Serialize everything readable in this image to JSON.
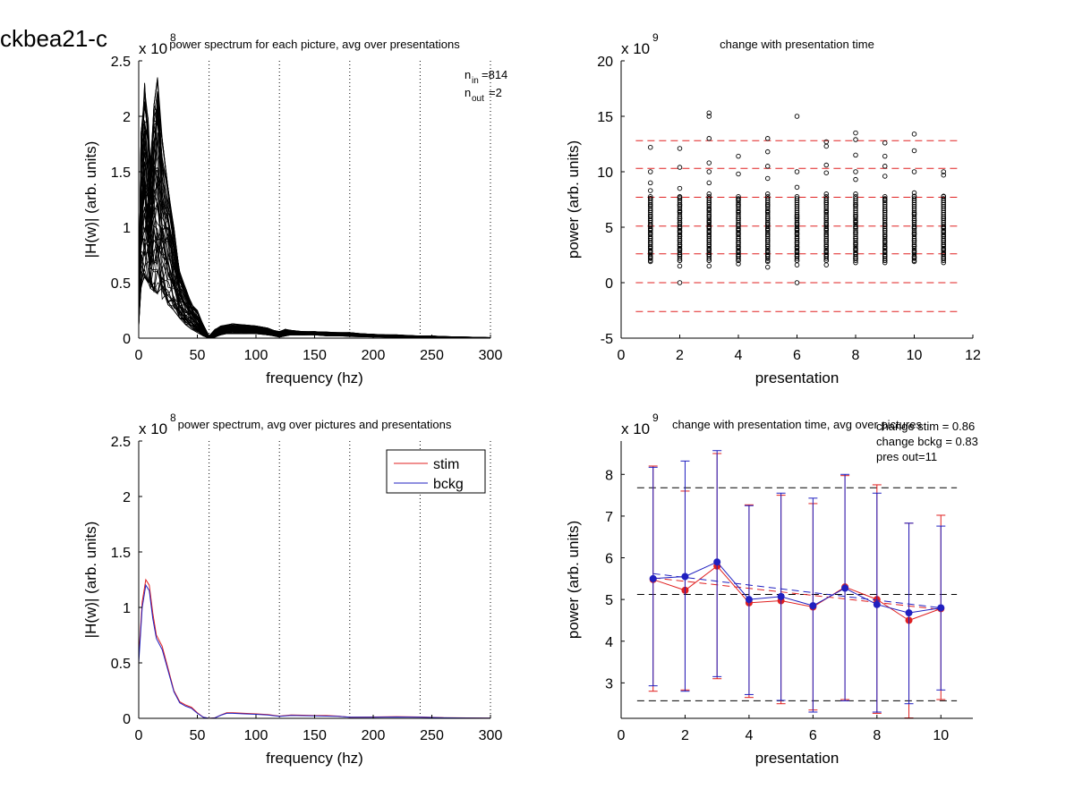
{
  "figure_title": "ckbea21-c",
  "chart_data": [
    {
      "type": "line",
      "title": "power spectrum for each picture, avg over presentations",
      "xlabel": "frequency (hz)",
      "ylabel": "|H(w)| (arb. units)",
      "y_exponent": "x 10",
      "y_exponent_power": "8",
      "xlim": [
        0,
        300
      ],
      "ylim": [
        0,
        2.5
      ],
      "x_ticks": [
        0,
        50,
        100,
        150,
        200,
        250,
        300
      ],
      "x_tick_labels": [
        "0",
        "50",
        "100",
        "150",
        "200",
        "250",
        "300"
      ],
      "y_ticks": [
        0,
        0.5,
        1,
        1.5,
        2,
        2.5
      ],
      "y_tick_labels": [
        "0",
        "0.5",
        "1",
        "1.5",
        "2",
        "2.5"
      ],
      "vlines": [
        60,
        120,
        180,
        240,
        300
      ],
      "annotation_n_in": "=814",
      "annotation_n_out": "=2",
      "annotation_n_in_sub": "in",
      "annotation_n_out_sub": "out",
      "frequencies": [
        0,
        2,
        5,
        8,
        10,
        13,
        16,
        20,
        25,
        30,
        35,
        40,
        45,
        50,
        55,
        60,
        65,
        70,
        75,
        80,
        90,
        100,
        110,
        115,
        120,
        125,
        130,
        140,
        150,
        160,
        170,
        180,
        190,
        200,
        210,
        220,
        230,
        240,
        250,
        260,
        270,
        280,
        290,
        300
      ],
      "envelope_upper": [
        0.3,
        1.85,
        2.3,
        2.0,
        1.6,
        2.1,
        2.35,
        1.8,
        1.35,
        1.0,
        0.6,
        0.45,
        0.32,
        0.25,
        0.12,
        0.02,
        0.08,
        0.11,
        0.12,
        0.13,
        0.12,
        0.11,
        0.09,
        0.07,
        0.06,
        0.08,
        0.07,
        0.06,
        0.06,
        0.055,
        0.05,
        0.05,
        0.04,
        0.035,
        0.03,
        0.03,
        0.025,
        0.02,
        0.02,
        0.015,
        0.012,
        0.01,
        0.008,
        0.005
      ],
      "envelope_lower": [
        0.1,
        0.45,
        0.55,
        0.5,
        0.45,
        0.42,
        0.4,
        0.35,
        0.3,
        0.25,
        0.18,
        0.12,
        0.08,
        0.05,
        0.02,
        0.0,
        0.01,
        0.03,
        0.04,
        0.04,
        0.04,
        0.04,
        0.03,
        0.02,
        0.01,
        0.02,
        0.03,
        0.03,
        0.03,
        0.02,
        0.02,
        0.015,
        0.012,
        0.01,
        0.01,
        0.008,
        0.005,
        0.004,
        0.003,
        0.002,
        0.002,
        0.001,
        0.001,
        0.0
      ],
      "line_color": "#000000"
    },
    {
      "type": "scatter",
      "title": "change with presentation time",
      "xlabel": "presentation",
      "ylabel": "power (arb. units)",
      "y_exponent": "x 10",
      "y_exponent_power": "9",
      "xlim": [
        0,
        12
      ],
      "ylim": [
        -5,
        20
      ],
      "x_ticks": [
        0,
        2,
        4,
        6,
        8,
        10,
        12
      ],
      "x_tick_labels": [
        "0",
        "2",
        "4",
        "6",
        "8",
        "10",
        "12"
      ],
      "y_ticks": [
        -5,
        0,
        5,
        10,
        15,
        20
      ],
      "y_tick_labels": [
        "-5",
        "0",
        "5",
        "10",
        "15",
        "20"
      ],
      "hlines": [
        -2.6,
        0,
        2.6,
        5.1,
        7.7,
        10.3,
        12.8
      ],
      "hline_color": "#e02020",
      "points": {
        "x": [
          1,
          1,
          1,
          1,
          1,
          1,
          1,
          1,
          1,
          1,
          1,
          1,
          1,
          1,
          1,
          1,
          1,
          1,
          2,
          2,
          2,
          2,
          2,
          2,
          2,
          2,
          2,
          2,
          2,
          2,
          2,
          2,
          2,
          2,
          2,
          2,
          3,
          3,
          3,
          3,
          3,
          3,
          3,
          3,
          3,
          3,
          3,
          3,
          3,
          3,
          3,
          3,
          3,
          3,
          3,
          3,
          4,
          4,
          4,
          4,
          4,
          4,
          4,
          4,
          4,
          4,
          4,
          4,
          4,
          4,
          4,
          4,
          5,
          5,
          5,
          5,
          5,
          5,
          5,
          5,
          5,
          5,
          5,
          5,
          5,
          5,
          5,
          5,
          5,
          6,
          6,
          6,
          6,
          6,
          6,
          6,
          6,
          6,
          6,
          6,
          6,
          6,
          6,
          6,
          6,
          7,
          7,
          7,
          7,
          7,
          7,
          7,
          7,
          7,
          7,
          7,
          7,
          7,
          7,
          7,
          7,
          7,
          8,
          8,
          8,
          8,
          8,
          8,
          8,
          8,
          8,
          8,
          8,
          8,
          8,
          8,
          8,
          8,
          8,
          9,
          9,
          9,
          9,
          9,
          9,
          9,
          9,
          9,
          9,
          9,
          9,
          9,
          9,
          9,
          9,
          10,
          10,
          10,
          10,
          10,
          10,
          10,
          10,
          10,
          10,
          10,
          10,
          10,
          10,
          11,
          11,
          11,
          11,
          11,
          11,
          11,
          11,
          11,
          11,
          11,
          11,
          11
        ],
        "y": [
          1.9,
          2.3,
          2.8,
          3.2,
          3.6,
          4.0,
          4.4,
          4.8,
          5.2,
          5.6,
          6.0,
          6.5,
          7.0,
          7.6,
          8.3,
          9.0,
          10.0,
          12.2,
          0.0,
          1.5,
          2.0,
          2.5,
          3.0,
          3.4,
          3.8,
          4.2,
          4.6,
          5.0,
          5.4,
          5.8,
          6.4,
          7.0,
          7.7,
          8.5,
          10.4,
          12.1,
          1.5,
          2.0,
          2.5,
          3.0,
          3.4,
          3.8,
          4.2,
          4.6,
          5.0,
          5.5,
          6.0,
          6.6,
          7.2,
          8.0,
          9.0,
          10.0,
          10.8,
          13.0,
          15.0,
          15.3,
          1.7,
          2.0,
          2.4,
          2.8,
          3.2,
          3.6,
          4.0,
          4.4,
          4.8,
          5.2,
          5.8,
          6.4,
          7.0,
          7.5,
          9.8,
          11.4,
          1.4,
          1.9,
          2.4,
          2.8,
          3.3,
          3.8,
          4.3,
          4.8,
          5.3,
          5.8,
          6.4,
          7.0,
          8.0,
          9.4,
          10.5,
          11.8,
          13.0,
          0.0,
          1.6,
          2.0,
          2.4,
          2.8,
          3.2,
          3.6,
          4.0,
          4.4,
          4.8,
          5.3,
          5.8,
          6.0,
          8.6,
          10.0,
          15.0,
          1.6,
          2.0,
          2.4,
          2.8,
          3.3,
          3.8,
          4.3,
          4.8,
          5.3,
          5.8,
          6.4,
          7.2,
          8.0,
          9.9,
          10.6,
          12.3,
          12.7,
          1.8,
          2.2,
          2.6,
          3.0,
          3.5,
          4.0,
          4.5,
          5.0,
          5.5,
          6.0,
          7.0,
          8.0,
          9.3,
          10.0,
          11.5,
          12.9,
          13.5,
          1.8,
          2.0,
          2.4,
          2.8,
          3.2,
          3.7,
          4.2,
          4.7,
          5.2,
          5.8,
          6.5,
          7.5,
          9.6,
          10.5,
          11.4,
          12.6,
          1.9,
          2.3,
          2.8,
          3.3,
          3.8,
          4.4,
          5.0,
          5.6,
          6.2,
          7.8,
          8.1,
          10.0,
          11.9,
          13.4,
          1.8,
          2.2,
          2.6,
          3.0,
          3.4,
          3.8,
          4.2,
          4.6,
          5.0,
          5.8,
          7.8,
          9.7,
          10.0
        ]
      }
    },
    {
      "type": "line",
      "title": "power spectrum, avg over pictures and presentations",
      "xlabel": "frequency (hz)",
      "ylabel": "|H(w)| (arb. units)",
      "y_exponent": "x 10",
      "y_exponent_power": "8",
      "xlim": [
        0,
        300
      ],
      "ylim": [
        0,
        2.5
      ],
      "x_ticks": [
        0,
        50,
        100,
        150,
        200,
        250,
        300
      ],
      "x_tick_labels": [
        "0",
        "50",
        "100",
        "150",
        "200",
        "250",
        "300"
      ],
      "y_ticks": [
        0,
        0.5,
        1,
        1.5,
        2,
        2.5
      ],
      "y_tick_labels": [
        "0",
        "0.5",
        "1",
        "1.5",
        "2",
        "2.5"
      ],
      "vlines": [
        60,
        120,
        180,
        240,
        300
      ],
      "legend_position": "top-right",
      "x": [
        0,
        3,
        6,
        9,
        12,
        15,
        20,
        25,
        30,
        35,
        40,
        45,
        50,
        55,
        60,
        65,
        70,
        75,
        80,
        90,
        100,
        110,
        120,
        130,
        140,
        150,
        160,
        170,
        180,
        200,
        220,
        240,
        260,
        280,
        300
      ],
      "series": [
        {
          "name": "stim",
          "color": "#e02020",
          "values": [
            0.55,
            1.05,
            1.25,
            1.2,
            0.95,
            0.75,
            0.65,
            0.45,
            0.25,
            0.15,
            0.12,
            0.1,
            0.05,
            0.01,
            0.0,
            0.005,
            0.03,
            0.05,
            0.05,
            0.045,
            0.04,
            0.035,
            0.02,
            0.03,
            0.028,
            0.025,
            0.025,
            0.02,
            0.01,
            0.012,
            0.015,
            0.012,
            0.006,
            0.004,
            0.002
          ]
        },
        {
          "name": "bckg",
          "color": "#2020c0",
          "values": [
            0.5,
            1.0,
            1.2,
            1.15,
            0.9,
            0.72,
            0.62,
            0.43,
            0.24,
            0.14,
            0.11,
            0.09,
            0.045,
            0.01,
            0.0,
            0.004,
            0.028,
            0.045,
            0.045,
            0.04,
            0.036,
            0.03,
            0.018,
            0.026,
            0.024,
            0.022,
            0.02,
            0.018,
            0.01,
            0.01,
            0.012,
            0.01,
            0.005,
            0.003,
            0.002
          ]
        }
      ]
    },
    {
      "type": "line",
      "title": "change with presentation time, avg over pictures",
      "xlabel": "presentation",
      "ylabel": "power (arb. units)",
      "y_exponent": "x 10",
      "y_exponent_power": "9",
      "xlim": [
        0,
        11
      ],
      "ylim": [
        2.15,
        8.8
      ],
      "x_ticks": [
        0,
        2,
        4,
        6,
        8,
        10
      ],
      "x_tick_labels": [
        "0",
        "2",
        "4",
        "6",
        "8",
        "10"
      ],
      "y_ticks": [
        3,
        4,
        5,
        6,
        7,
        8
      ],
      "y_tick_labels": [
        "3",
        "4",
        "5",
        "6",
        "7",
        "8"
      ],
      "hlines": [
        2.57,
        5.12,
        7.68
      ],
      "hline_color": "#000000",
      "annotations": [
        "change stim = 0.86",
        "change bckg = 0.83",
        "pres out=11"
      ],
      "x": [
        1,
        2,
        3,
        4,
        5,
        6,
        7,
        8,
        9,
        10
      ],
      "series": [
        {
          "name": "stim",
          "color": "#e02020",
          "values": [
            5.48,
            5.22,
            5.8,
            4.92,
            4.97,
            4.82,
            5.3,
            5.0,
            4.5,
            4.78
          ],
          "err_upper": [
            8.2,
            7.6,
            8.5,
            7.27,
            7.5,
            7.3,
            7.97,
            7.75,
            6.83,
            7.02
          ],
          "err_lower": [
            2.8,
            2.83,
            3.1,
            2.65,
            2.5,
            2.35,
            2.6,
            2.27,
            2.16,
            2.6
          ],
          "trend": [
            5.52,
            4.76
          ]
        },
        {
          "name": "bckg",
          "color": "#2020c0",
          "values": [
            5.5,
            5.55,
            5.9,
            5.0,
            5.07,
            4.85,
            5.27,
            4.88,
            4.68,
            4.8
          ],
          "err_upper": [
            8.17,
            8.32,
            8.57,
            7.25,
            7.55,
            7.43,
            8.0,
            7.55,
            6.83,
            6.76
          ],
          "err_lower": [
            2.93,
            2.8,
            3.15,
            2.72,
            2.58,
            2.3,
            2.57,
            2.3,
            2.5,
            2.83
          ],
          "trend": [
            5.62,
            4.8
          ]
        }
      ]
    }
  ]
}
